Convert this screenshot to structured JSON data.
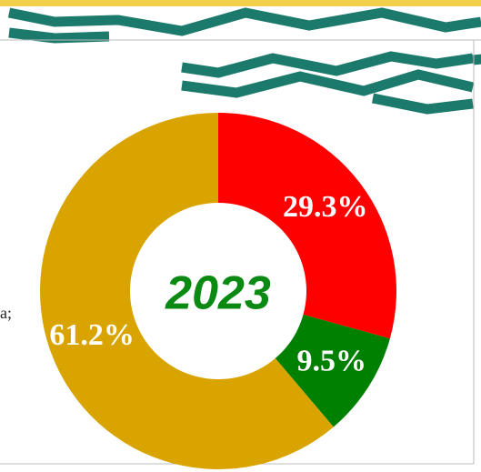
{
  "chart_data": {
    "type": "donut",
    "center_label": "2023",
    "values": [
      29.3,
      9.5,
      61.2
    ],
    "value_labels": [
      "29.3%",
      "9.5%",
      "61.2%"
    ],
    "colors": [
      "#ff0000",
      "#008000",
      "#d9a400"
    ],
    "side_text": "a;"
  }
}
